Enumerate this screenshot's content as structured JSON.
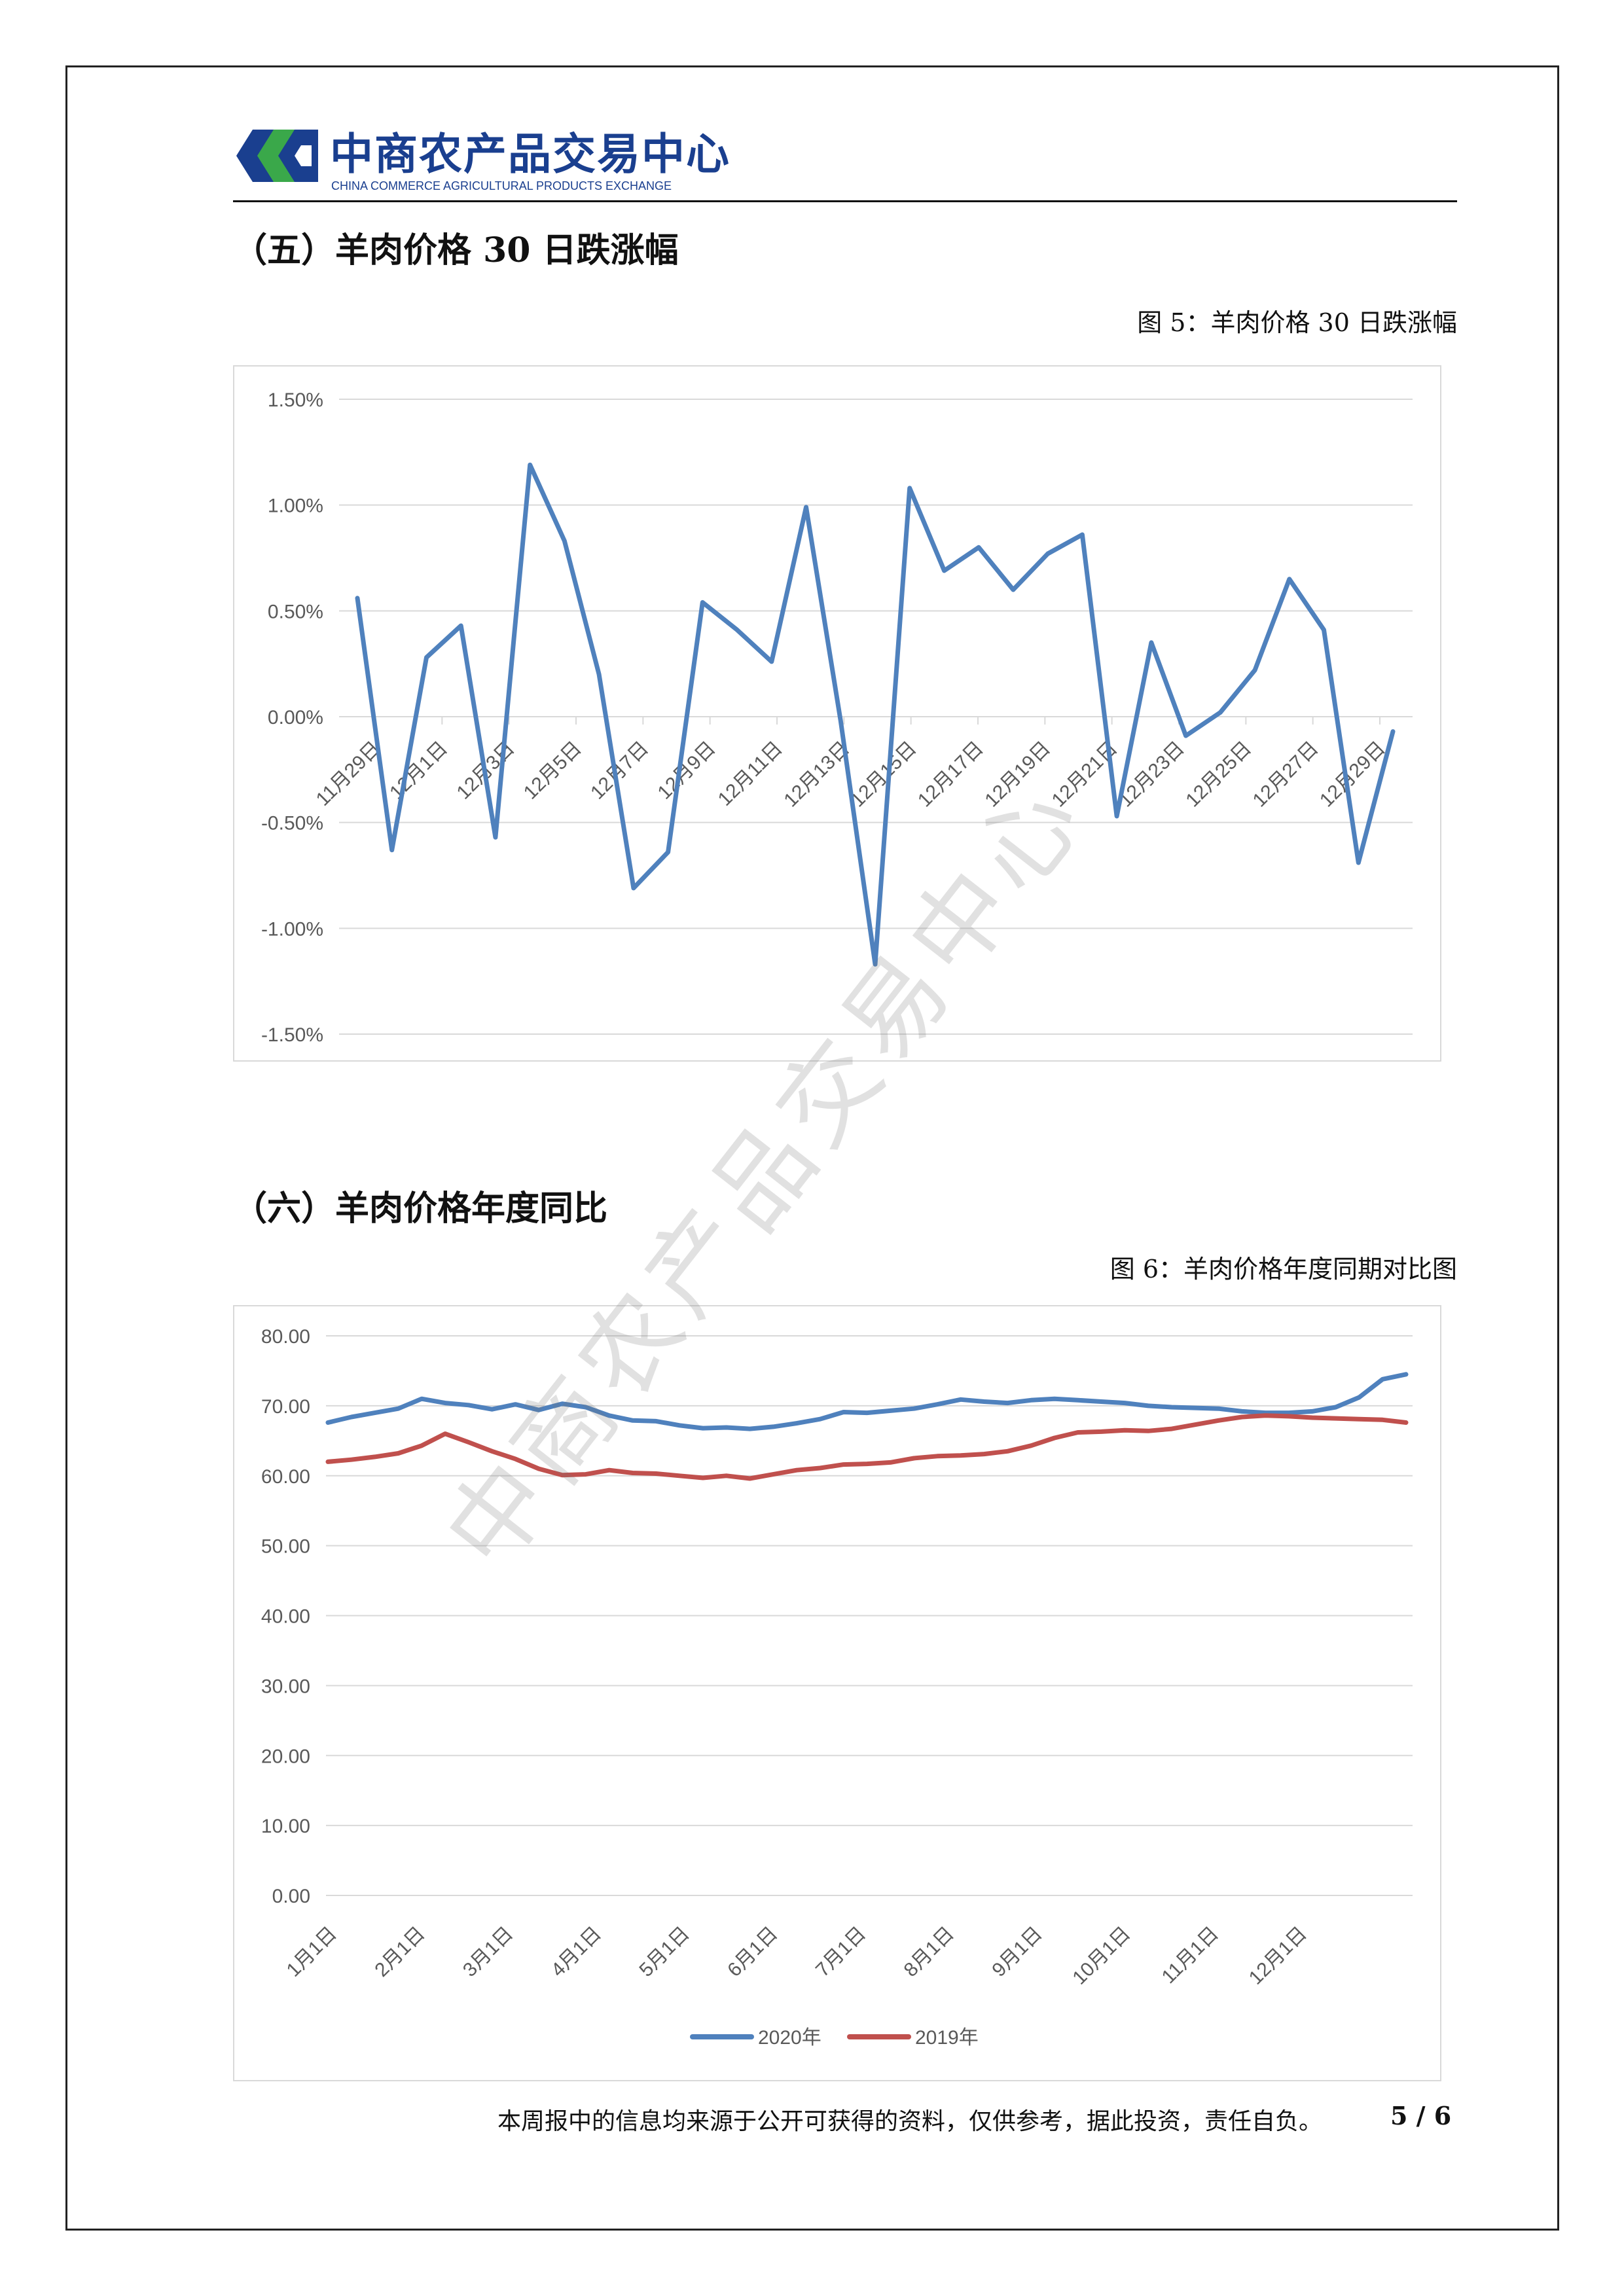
{
  "header": {
    "logo_cn": "中商农产品交易中心",
    "logo_en": "CHINA COMMERCE AGRICULTURAL PRODUCTS EXCHANGE",
    "brand_color": "#1a3f8f",
    "logo_green": "#3aa84a"
  },
  "section5": {
    "title": "（五）羊肉价格 30 日跌涨幅",
    "caption": "图 5：羊肉价格 30 日跌涨幅"
  },
  "section6": {
    "title": "（六）羊肉价格年度同比",
    "caption": "图 6：羊肉价格年度同期对比图"
  },
  "watermark": "中商农产品交易中心",
  "footer": {
    "disclaimer": "本周报中的信息均来源于公开可获得的资料，仅供参考，据此投资，责任自负。",
    "page": "5 / 6"
  },
  "chart_data": [
    {
      "type": "line",
      "title": "",
      "xlabel": "",
      "ylabel": "",
      "ylim": [
        -1.5,
        1.5
      ],
      "y_ticks": [
        "1.50%",
        "1.00%",
        "0.50%",
        "0.00%",
        "-0.50%",
        "-1.00%",
        "-1.50%"
      ],
      "y_tick_values": [
        1.5,
        1.0,
        0.5,
        0.0,
        -0.5,
        -1.0,
        -1.5
      ],
      "x_tick_labels": [
        "11月29日",
        "12月1日",
        "12月3日",
        "12月5日",
        "12月7日",
        "12月9日",
        "12月11日",
        "12月13日",
        "12月15日",
        "12月17日",
        "12月19日",
        "12月21日",
        "12月23日",
        "12月25日",
        "12月27日",
        "12月29日"
      ],
      "grid": true,
      "legend": "none",
      "color": "#4f81bd",
      "series": [
        {
          "values": [
            0.56,
            -0.63,
            0.28,
            0.43,
            -0.57,
            1.19,
            0.83,
            0.2,
            -0.81,
            -0.64,
            0.54,
            0.41,
            0.26,
            0.99,
            -0.02,
            -1.17,
            1.08,
            0.69,
            0.8,
            0.6,
            0.77,
            0.86,
            -0.47,
            0.35,
            -0.09,
            0.02,
            0.22,
            0.65,
            0.41,
            -0.69,
            -0.07
          ]
        }
      ]
    },
    {
      "type": "line",
      "title": "",
      "xlabel": "",
      "ylabel": "",
      "ylim": [
        0,
        80
      ],
      "y_ticks": [
        "80.00",
        "70.00",
        "60.00",
        "50.00",
        "40.00",
        "30.00",
        "20.00",
        "10.00",
        "0.00"
      ],
      "y_tick_values": [
        80,
        70,
        60,
        50,
        40,
        30,
        20,
        10,
        0
      ],
      "x_tick_labels": [
        "1月1日",
        "2月1日",
        "3月1日",
        "4月1日",
        "5月1日",
        "6月1日",
        "7月1日",
        "8月1日",
        "9月1日",
        "10月1日",
        "11月1日",
        "12月1日"
      ],
      "grid": true,
      "legend": "bottom",
      "series": [
        {
          "name": "2020年",
          "color": "#4f81bd",
          "values": [
            67.6,
            68.4,
            69.0,
            69.6,
            71.0,
            70.4,
            70.1,
            69.5,
            70.2,
            69.4,
            70.3,
            69.8,
            68.6,
            67.9,
            67.8,
            67.2,
            66.8,
            66.9,
            66.7,
            67.0,
            67.5,
            68.1,
            69.1,
            69.0,
            69.3,
            69.6,
            70.2,
            70.9,
            70.6,
            70.4,
            70.8,
            71.0,
            70.8,
            70.6,
            70.4,
            70.0,
            69.8,
            69.7,
            69.6,
            69.2,
            69.0,
            69.0,
            69.2,
            69.8,
            71.2,
            73.8,
            74.5
          ]
        },
        {
          "name": "2019年",
          "color": "#c0504d",
          "values": [
            62.0,
            62.3,
            62.7,
            63.2,
            64.3,
            66.0,
            64.8,
            63.5,
            62.4,
            61.0,
            60.1,
            60.2,
            60.8,
            60.4,
            60.3,
            60.0,
            59.7,
            60.0,
            59.6,
            60.2,
            60.8,
            61.1,
            61.6,
            61.7,
            61.9,
            62.5,
            62.8,
            62.9,
            63.1,
            63.5,
            64.3,
            65.4,
            66.2,
            66.3,
            66.5,
            66.4,
            66.7,
            67.3,
            67.9,
            68.4,
            68.6,
            68.5,
            68.3,
            68.2,
            68.1,
            68.0,
            67.6
          ]
        }
      ]
    }
  ]
}
